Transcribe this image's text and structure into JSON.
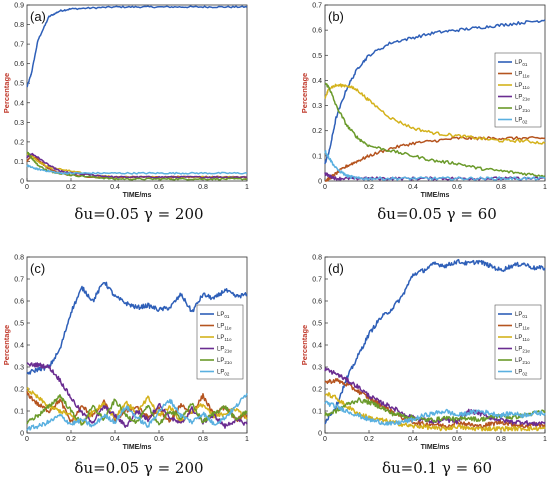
{
  "figure": {
    "panels": [
      {
        "id": "a",
        "label": "(a)",
        "caption": "δu=0.05   γ = 200",
        "xlabel": "TIME/ms",
        "ylabel": "Percentage",
        "xlim": [
          0,
          1
        ],
        "ylim": [
          0,
          0.9
        ],
        "xticks": [
          "0",
          "0.2",
          "0.4",
          "0.6",
          "0.8",
          "1"
        ],
        "yticks": [
          "0",
          "0.1",
          "0.2",
          "0.3",
          "0.4",
          "0.5",
          "0.6",
          "0.7",
          "0.8",
          "0.9"
        ],
        "legend": "none"
      },
      {
        "id": "b",
        "label": "(b)",
        "caption": "δu=0.05   γ = 60",
        "xlabel": "TIME/ms",
        "ylabel": "Percentage",
        "xlim": [
          0,
          1
        ],
        "ylim": [
          0,
          0.7
        ],
        "xticks": [
          "0",
          "0.2",
          "0.4",
          "0.6",
          "0.8",
          "1"
        ],
        "yticks": [
          "0",
          "0.1",
          "0.2",
          "0.3",
          "0.4",
          "0.5",
          "0.6",
          "0.7"
        ],
        "legend": "right"
      },
      {
        "id": "c",
        "label": "(c)",
        "caption": "δu=0.05   γ = 200",
        "xlabel": "TIME/ms",
        "ylabel": "Percentage",
        "xlim": [
          0,
          1
        ],
        "ylim": [
          0,
          0.8
        ],
        "xticks": [
          "0",
          "0.2",
          "0.4",
          "0.6",
          "0.8",
          "1"
        ],
        "yticks": [
          "0",
          "0.1",
          "0.2",
          "0.3",
          "0.4",
          "0.5",
          "0.6",
          "0.7",
          "0.8"
        ],
        "legend": "right"
      },
      {
        "id": "d",
        "label": "(d)",
        "caption": "δu=0.1   γ = 60",
        "xlabel": "TIME/ms",
        "ylabel": "Percentage",
        "xlim": [
          0,
          1
        ],
        "ylim": [
          0,
          0.8
        ],
        "xticks": [
          "0",
          "0.2",
          "0.4",
          "0.6",
          "0.8",
          "1"
        ],
        "yticks": [
          "0",
          "0.1",
          "0.2",
          "0.3",
          "0.4",
          "0.5",
          "0.6",
          "0.7",
          "0.8"
        ],
        "legend": "right"
      }
    ]
  },
  "chart_data": [
    {
      "type": "line",
      "panel": "a",
      "x": [
        0,
        0.02,
        0.05,
        0.1,
        0.15,
        0.2,
        0.3,
        0.4,
        0.5,
        0.6,
        0.7,
        0.8,
        0.9,
        1.0
      ],
      "series": [
        {
          "name": "LP01",
          "color": "#2e5fb8",
          "values": [
            0.48,
            0.55,
            0.72,
            0.84,
            0.87,
            0.88,
            0.885,
            0.89,
            0.89,
            0.89,
            0.89,
            0.89,
            0.89,
            0.89
          ]
        },
        {
          "name": "LP11e",
          "color": "#b5541f",
          "values": [
            0.1,
            0.13,
            0.11,
            0.06,
            0.04,
            0.03,
            0.02,
            0.02,
            0.02,
            0.02,
            0.02,
            0.02,
            0.02,
            0.02
          ]
        },
        {
          "name": "LP11o",
          "color": "#d4b21c",
          "values": [
            0.14,
            0.13,
            0.1,
            0.07,
            0.06,
            0.05,
            0.03,
            0.02,
            0.02,
            0.02,
            0.02,
            0.02,
            0.02,
            0.02
          ]
        },
        {
          "name": "LP21e",
          "color": "#6a2c91",
          "values": [
            0.12,
            0.14,
            0.12,
            0.08,
            0.05,
            0.04,
            0.03,
            0.02,
            0.02,
            0.02,
            0.02,
            0.02,
            0.02,
            0.02
          ]
        },
        {
          "name": "LP21o",
          "color": "#6a9a2a",
          "values": [
            0.15,
            0.12,
            0.08,
            0.05,
            0.04,
            0.03,
            0.02,
            0.01,
            0.01,
            0.01,
            0.01,
            0.01,
            0.01,
            0.01
          ]
        },
        {
          "name": "LP02",
          "color": "#5ab0e0",
          "values": [
            0.08,
            0.07,
            0.06,
            0.05,
            0.04,
            0.04,
            0.04,
            0.04,
            0.04,
            0.04,
            0.04,
            0.04,
            0.04,
            0.04
          ]
        }
      ]
    },
    {
      "type": "line",
      "panel": "b",
      "x": [
        0,
        0.02,
        0.05,
        0.1,
        0.15,
        0.2,
        0.3,
        0.4,
        0.5,
        0.6,
        0.7,
        0.8,
        0.9,
        1.0
      ],
      "series": [
        {
          "name": "LP01",
          "color": "#2e5fb8",
          "values": [
            0.07,
            0.12,
            0.25,
            0.37,
            0.45,
            0.5,
            0.55,
            0.57,
            0.59,
            0.6,
            0.61,
            0.62,
            0.63,
            0.64
          ]
        },
        {
          "name": "LP11e",
          "color": "#b5541f",
          "values": [
            0.0,
            0.01,
            0.03,
            0.06,
            0.08,
            0.1,
            0.13,
            0.15,
            0.16,
            0.17,
            0.17,
            0.17,
            0.17,
            0.17
          ]
        },
        {
          "name": "LP11o",
          "color": "#d4b21c",
          "values": [
            0.33,
            0.37,
            0.38,
            0.38,
            0.36,
            0.32,
            0.25,
            0.21,
            0.19,
            0.18,
            0.17,
            0.16,
            0.16,
            0.15
          ]
        },
        {
          "name": "LP21e",
          "color": "#6a2c91",
          "values": [
            0.03,
            0.02,
            0.01,
            0.01,
            0.01,
            0.01,
            0.01,
            0.01,
            0.01,
            0.01,
            0.01,
            0.01,
            0.01,
            0.01
          ]
        },
        {
          "name": "LP21o",
          "color": "#6a9a2a",
          "values": [
            0.39,
            0.37,
            0.3,
            0.22,
            0.17,
            0.14,
            0.12,
            0.1,
            0.08,
            0.07,
            0.05,
            0.04,
            0.03,
            0.02
          ]
        },
        {
          "name": "LP02",
          "color": "#5ab0e0",
          "values": [
            0.12,
            0.09,
            0.05,
            0.02,
            0.01,
            0.01,
            0.01,
            0.01,
            0.01,
            0.01,
            0.01,
            0.01,
            0.01,
            0.01
          ]
        }
      ]
    },
    {
      "type": "line",
      "panel": "c",
      "x": [
        0,
        0.05,
        0.1,
        0.15,
        0.2,
        0.25,
        0.3,
        0.35,
        0.4,
        0.45,
        0.5,
        0.55,
        0.6,
        0.65,
        0.7,
        0.75,
        0.8,
        0.85,
        0.9,
        0.95,
        1.0
      ],
      "series": [
        {
          "name": "LP01",
          "color": "#2e5fb8",
          "values": [
            0.27,
            0.29,
            0.3,
            0.38,
            0.55,
            0.66,
            0.6,
            0.69,
            0.62,
            0.59,
            0.57,
            0.58,
            0.56,
            0.57,
            0.63,
            0.55,
            0.63,
            0.61,
            0.65,
            0.62,
            0.63
          ]
        },
        {
          "name": "LP11e",
          "color": "#b5541f",
          "values": [
            0.18,
            0.13,
            0.1,
            0.15,
            0.05,
            0.12,
            0.08,
            0.14,
            0.06,
            0.1,
            0.12,
            0.07,
            0.11,
            0.05,
            0.13,
            0.09,
            0.17,
            0.08,
            0.12,
            0.06,
            0.08
          ]
        },
        {
          "name": "LP11o",
          "color": "#d4b21c",
          "values": [
            0.2,
            0.16,
            0.12,
            0.1,
            0.08,
            0.04,
            0.1,
            0.13,
            0.07,
            0.14,
            0.09,
            0.16,
            0.08,
            0.12,
            0.05,
            0.1,
            0.13,
            0.07,
            0.09,
            0.11,
            0.07
          ]
        },
        {
          "name": "LP21e",
          "color": "#6a2c91",
          "values": [
            0.31,
            0.31,
            0.3,
            0.24,
            0.16,
            0.09,
            0.05,
            0.12,
            0.08,
            0.03,
            0.1,
            0.06,
            0.13,
            0.07,
            0.04,
            0.11,
            0.05,
            0.08,
            0.03,
            0.06,
            0.04
          ]
        },
        {
          "name": "LP21o",
          "color": "#6a9a2a",
          "values": [
            0.05,
            0.08,
            0.12,
            0.17,
            0.1,
            0.04,
            0.12,
            0.06,
            0.15,
            0.08,
            0.05,
            0.12,
            0.04,
            0.1,
            0.07,
            0.13,
            0.05,
            0.09,
            0.12,
            0.06,
            0.1
          ]
        },
        {
          "name": "LP02",
          "color": "#5ab0e0",
          "values": [
            0.02,
            0.03,
            0.05,
            0.08,
            0.04,
            0.06,
            0.03,
            0.08,
            0.05,
            0.12,
            0.07,
            0.03,
            0.1,
            0.15,
            0.08,
            0.05,
            0.09,
            0.04,
            0.07,
            0.12,
            0.18
          ]
        }
      ]
    },
    {
      "type": "line",
      "panel": "d",
      "x": [
        0,
        0.05,
        0.1,
        0.15,
        0.2,
        0.25,
        0.3,
        0.35,
        0.4,
        0.45,
        0.5,
        0.55,
        0.6,
        0.65,
        0.7,
        0.75,
        0.8,
        0.85,
        0.9,
        0.95,
        1.0
      ],
      "series": [
        {
          "name": "LP01",
          "color": "#2e5fb8",
          "values": [
            0.05,
            0.12,
            0.25,
            0.35,
            0.45,
            0.52,
            0.56,
            0.62,
            0.72,
            0.74,
            0.77,
            0.76,
            0.78,
            0.77,
            0.78,
            0.76,
            0.74,
            0.76,
            0.77,
            0.75,
            0.75
          ]
        },
        {
          "name": "LP11e",
          "color": "#b5541f",
          "values": [
            0.23,
            0.24,
            0.22,
            0.19,
            0.16,
            0.13,
            0.1,
            0.07,
            0.05,
            0.04,
            0.04,
            0.03,
            0.05,
            0.04,
            0.03,
            0.04,
            0.05,
            0.04,
            0.03,
            0.04,
            0.03
          ]
        },
        {
          "name": "LP11o",
          "color": "#d4b21c",
          "values": [
            0.18,
            0.16,
            0.12,
            0.09,
            0.07,
            0.06,
            0.05,
            0.04,
            0.03,
            0.03,
            0.02,
            0.02,
            0.03,
            0.02,
            0.02,
            0.02,
            0.02,
            0.02,
            0.02,
            0.02,
            0.02
          ]
        },
        {
          "name": "LP21e",
          "color": "#6a2c91",
          "values": [
            0.29,
            0.27,
            0.24,
            0.21,
            0.17,
            0.14,
            0.12,
            0.09,
            0.07,
            0.06,
            0.05,
            0.06,
            0.05,
            0.1,
            0.09,
            0.07,
            0.06,
            0.05,
            0.05,
            0.04,
            0.05
          ]
        },
        {
          "name": "LP21o",
          "color": "#6a9a2a",
          "values": [
            0.08,
            0.1,
            0.13,
            0.15,
            0.14,
            0.12,
            0.09,
            0.08,
            0.07,
            0.06,
            0.06,
            0.07,
            0.06,
            0.07,
            0.06,
            0.07,
            0.08,
            0.07,
            0.08,
            0.09,
            0.1
          ]
        },
        {
          "name": "LP02",
          "color": "#5ab0e0",
          "values": [
            0.14,
            0.12,
            0.1,
            0.08,
            0.06,
            0.05,
            0.04,
            0.05,
            0.06,
            0.08,
            0.09,
            0.1,
            0.08,
            0.09,
            0.1,
            0.09,
            0.08,
            0.09,
            0.08,
            0.09,
            0.09
          ]
        }
      ]
    }
  ],
  "legend": {
    "entries": [
      {
        "main": "LP",
        "sub": "01"
      },
      {
        "main": "LP",
        "sub": "11e"
      },
      {
        "main": "LP",
        "sub": "11o"
      },
      {
        "main": "LP",
        "sub": "21e"
      },
      {
        "main": "LP",
        "sub": "21o"
      },
      {
        "main": "LP",
        "sub": "02"
      }
    ]
  }
}
